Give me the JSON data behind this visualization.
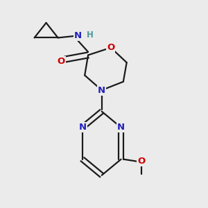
{
  "bg_color": "#ebebeb",
  "bond_color": "#1a1a1a",
  "N_color": "#2222bb",
  "O_color": "#cc0000",
  "H_color": "#4d9999",
  "line_width": 1.6,
  "fig_size": [
    3.0,
    3.0
  ],
  "dpi": 100,
  "xlim": [
    0.05,
    0.95
  ],
  "ylim": [
    0.02,
    0.98
  ]
}
